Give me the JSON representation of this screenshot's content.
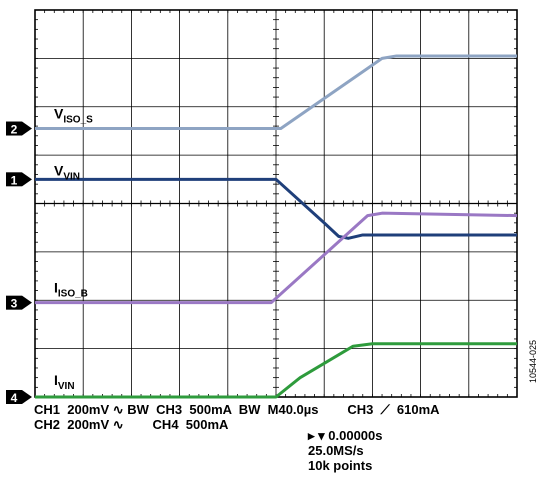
{
  "chart_data": {
    "type": "line",
    "grid": true,
    "x": [
      0,
      5,
      5.5,
      8.5,
      10
    ],
    "time_axis": {
      "divisions": 10,
      "per_division": "40.0µs"
    },
    "series": [
      {
        "name": "V",
        "subscript": "ISO_S",
        "marker": "2",
        "color": "#8ea4c3",
        "x": [
          0,
          5.1,
          7.2,
          7.5,
          10
        ],
        "y": [
          -2.45,
          -2.45,
          -1.0,
          -0.95,
          -0.95
        ]
      },
      {
        "name": "V",
        "subscript": "VIN",
        "marker": "1",
        "color": "#1f3f7a",
        "x": [
          0,
          5.0,
          6.0,
          6.3,
          6.5,
          6.8,
          10
        ],
        "y": [
          -3.5,
          -3.5,
          -4.4,
          -4.68,
          -4.72,
          -4.65,
          -4.65
        ]
      },
      {
        "name": "I",
        "subscript": "ISO_B",
        "marker": "3",
        "color": "#9a78c4",
        "x": [
          0,
          4.9,
          6.9,
          7.2,
          10
        ],
        "y": [
          -6.05,
          -6.05,
          -4.25,
          -4.2,
          -4.25
        ]
      },
      {
        "name": "I",
        "subscript": "VIN",
        "marker": "4",
        "color": "#2e9b3c",
        "x": [
          0,
          5.0,
          5.5,
          6.6,
          7.0,
          10
        ],
        "y": [
          -8.0,
          -8.0,
          -7.6,
          -6.95,
          -6.9,
          -6.9
        ]
      }
    ]
  },
  "readout": {
    "line1": "CH1  200mV ∿ BW  CH3  500mA  BW  M40.0µs        CH3  ⟋  610mA",
    "line2": "CH2  200mV ∿        CH4  500mA",
    "trigger_position": "▸ ▾ 0.00000s",
    "sample_rate": "25.0MS/s",
    "points": "10k points"
  },
  "figure_id": "10544-025"
}
